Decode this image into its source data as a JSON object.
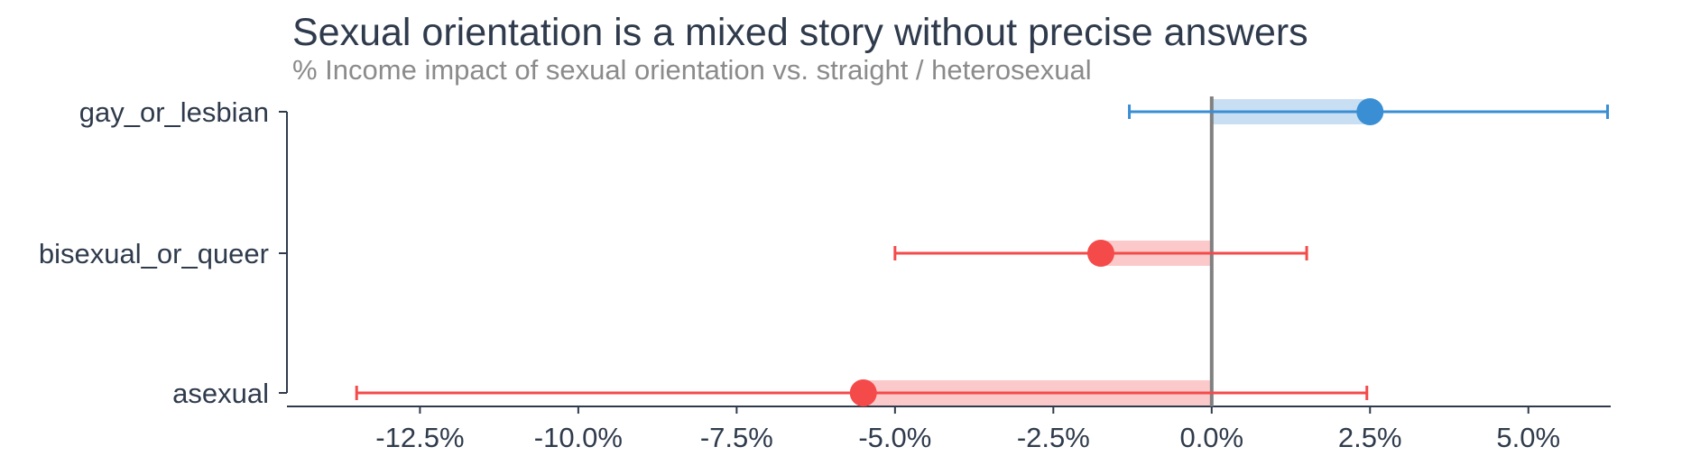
{
  "chart_data": {
    "type": "forest",
    "title": "Sexual orientation is a mixed story without precise answers",
    "subtitle": "% Income impact of sexual orientation vs. straight / heterosexual",
    "xlabel": "",
    "ylabel": "",
    "xlim": [
      -14.6,
      6.3
    ],
    "x_ticks": [
      -12.5,
      -10.0,
      -7.5,
      -5.0,
      -2.5,
      0.0,
      2.5,
      5.0
    ],
    "x_tick_labels": [
      "-12.5%",
      "-10.0%",
      "-7.5%",
      "-5.0%",
      "-2.5%",
      "0.0%",
      "2.5%",
      "5.0%"
    ],
    "reference_line": 0.0,
    "grid": false,
    "categories": [
      "gay_or_lesbian",
      "bisexual_or_queer",
      "asexual"
    ],
    "points": [
      {
        "label": "gay_or_lesbian",
        "estimate": 2.5,
        "ci_low": -1.3,
        "ci_high": 6.25,
        "color": "#3a8fd4",
        "band_color": "#c8def2"
      },
      {
        "label": "bisexual_or_queer",
        "estimate": -1.75,
        "ci_low": -5.0,
        "ci_high": 1.5,
        "color": "#f44a4a",
        "band_color": "#fbc9c9"
      },
      {
        "label": "asexual",
        "estimate": -5.5,
        "ci_low": -13.5,
        "ci_high": 2.45,
        "color": "#f44a4a",
        "band_color": "#fbc9c9"
      }
    ]
  }
}
